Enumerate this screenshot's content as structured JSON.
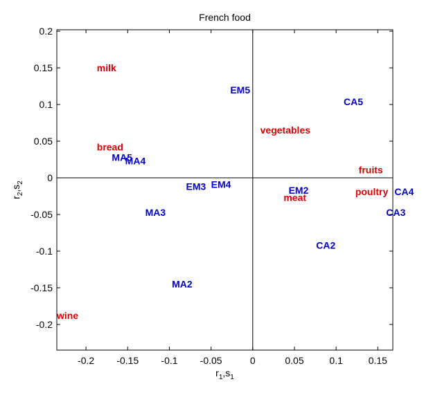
{
  "chart_data": {
    "type": "scatter",
    "title": "French food",
    "xlabel": {
      "main": "r",
      "sub": "1",
      "sep": ",",
      "main2": "s",
      "sub2": "1"
    },
    "ylabel": {
      "main": "r",
      "sub": "2",
      "sep": ",",
      "main2": "s",
      "sub2": "2"
    },
    "xlim": [
      -0.235,
      0.168
    ],
    "ylim": [
      -0.235,
      0.202
    ],
    "xticks": [
      -0.2,
      -0.15,
      -0.1,
      -0.05,
      0,
      0.05,
      0.1,
      0.15
    ],
    "xtick_labels": [
      "-0.2",
      "-0.15",
      "-0.1",
      "-0.05",
      "0",
      "0.05",
      "0.1",
      "0.15"
    ],
    "yticks": [
      0.2,
      0.15,
      0.1,
      0.05,
      0,
      -0.05,
      -0.1,
      -0.15,
      -0.2
    ],
    "ytick_labels": [
      "0.2",
      "0.15",
      "0.1",
      "0.05",
      "0",
      "-0.05",
      "-0.1",
      "-0.15",
      "-0.2"
    ],
    "grid": false,
    "reference_lines": {
      "x": 0,
      "y": 0
    },
    "colors": {
      "foods": "#e00000",
      "groups": "#0000d0"
    },
    "series": [
      {
        "color_key": "foods",
        "points": [
          {
            "label": "milk",
            "x": -0.187,
            "y": 0.15
          },
          {
            "label": "vegetables",
            "x": 0.009,
            "y": 0.065
          },
          {
            "label": "bread",
            "x": -0.187,
            "y": 0.042
          },
          {
            "label": "fruits",
            "x": 0.127,
            "y": 0.011
          },
          {
            "label": "poultry",
            "x": 0.123,
            "y": -0.019
          },
          {
            "label": "meat",
            "x": 0.037,
            "y": -0.027
          },
          {
            "label": "wine",
            "x": -0.235,
            "y": -0.188
          }
        ]
      },
      {
        "color_key": "groups",
        "points": [
          {
            "label": "EM5",
            "x": -0.027,
            "y": 0.12
          },
          {
            "label": "CA5",
            "x": 0.109,
            "y": 0.104
          },
          {
            "label": "MA5",
            "x": -0.169,
            "y": 0.028
          },
          {
            "label": "MA4",
            "x": -0.153,
            "y": 0.023
          },
          {
            "label": "EM3",
            "x": -0.08,
            "y": -0.012
          },
          {
            "label": "EM4",
            "x": -0.05,
            "y": -0.009
          },
          {
            "label": "EM2",
            "x": 0.043,
            "y": -0.017
          },
          {
            "label": "CA4",
            "x": 0.17,
            "y": -0.019
          },
          {
            "label": "MA3",
            "x": -0.129,
            "y": -0.047
          },
          {
            "label": "CA3",
            "x": 0.16,
            "y": -0.047
          },
          {
            "label": "CA2",
            "x": 0.076,
            "y": -0.092
          },
          {
            "label": "MA2",
            "x": -0.097,
            "y": -0.145
          }
        ]
      }
    ]
  }
}
